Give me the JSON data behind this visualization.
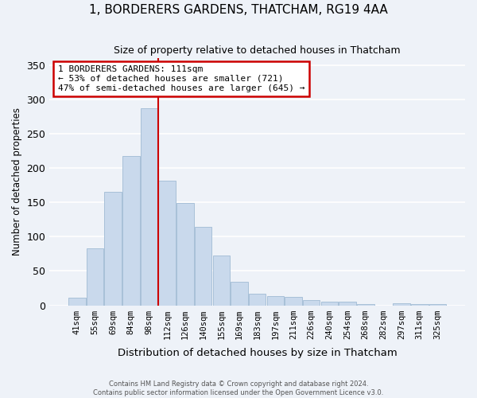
{
  "title": "1, BORDERERS GARDENS, THATCHAM, RG19 4AA",
  "subtitle": "Size of property relative to detached houses in Thatcham",
  "xlabel": "Distribution of detached houses by size in Thatcham",
  "ylabel": "Number of detached properties",
  "bar_labels": [
    "41sqm",
    "55sqm",
    "69sqm",
    "84sqm",
    "98sqm",
    "112sqm",
    "126sqm",
    "140sqm",
    "155sqm",
    "169sqm",
    "183sqm",
    "197sqm",
    "211sqm",
    "226sqm",
    "240sqm",
    "254sqm",
    "268sqm",
    "282sqm",
    "297sqm",
    "311sqm",
    "325sqm"
  ],
  "bar_values": [
    11,
    83,
    165,
    217,
    287,
    181,
    149,
    114,
    73,
    34,
    17,
    13,
    12,
    8,
    5,
    5,
    2,
    0,
    3,
    2,
    2
  ],
  "bar_color": "#c9d9ec",
  "bar_edgecolor": "#a8c0d8",
  "vline_x": 4.5,
  "vline_color": "#cc0000",
  "ylim": [
    0,
    360
  ],
  "yticks": [
    0,
    50,
    100,
    150,
    200,
    250,
    300,
    350
  ],
  "annotation_line1": "1 BORDERERS GARDENS: 111sqm",
  "annotation_line2": "← 53% of detached houses are smaller (721)",
  "annotation_line3": "47% of semi-detached houses are larger (645) →",
  "annotation_box_facecolor": "#ffffff",
  "annotation_box_edgecolor": "#cc0000",
  "footer_line1": "Contains HM Land Registry data © Crown copyright and database right 2024.",
  "footer_line2": "Contains public sector information licensed under the Open Government Licence v3.0.",
  "background_color": "#eef2f8",
  "grid_color": "#ffffff"
}
